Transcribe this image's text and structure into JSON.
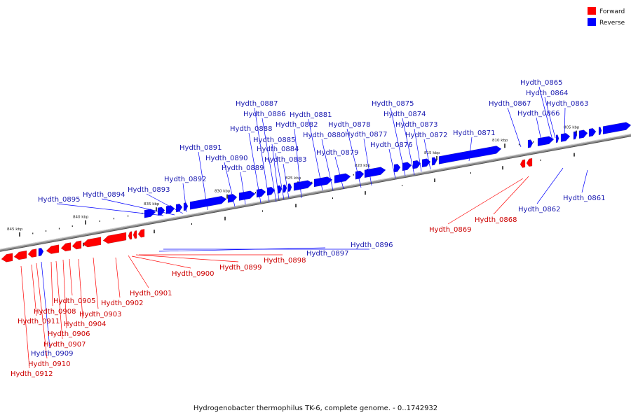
{
  "title": "Hydrogenobacter thermophilus TK-6, complete genome. - 0..1742932",
  "legend": [
    {
      "name": "Forward",
      "color": "#ff0000"
    },
    {
      "name": "Reverse",
      "color": "#0000ff"
    }
  ],
  "colors": {
    "forward": "#ff0000",
    "reverse": "#0000ff",
    "backbone": "#8c8c8c"
  },
  "chart_data": {
    "type": "genome-linear-map",
    "axis_unit": "kbp",
    "ticks": [
      {
        "kbp": 845,
        "label": "845 kbp"
      },
      {
        "kbp": 840,
        "label": "840 kbp"
      },
      {
        "kbp": 835,
        "label": "835 kbp"
      },
      {
        "kbp": 830,
        "label": "830 kbp"
      },
      {
        "kbp": 825,
        "label": "825 kbp"
      },
      {
        "kbp": 820,
        "label": "820 kbp"
      },
      {
        "kbp": 815,
        "label": "815 kbp"
      },
      {
        "kbp": 810,
        "label": "810 kbp"
      },
      {
        "kbp": 805,
        "label": "805 kbp"
      }
    ],
    "genes": [
      {
        "label": "Hydth_0861",
        "strand": "reverse"
      },
      {
        "label": "Hydth_0862",
        "strand": "reverse"
      },
      {
        "label": "Hydth_0863",
        "strand": "reverse"
      },
      {
        "label": "Hydth_0864",
        "strand": "reverse"
      },
      {
        "label": "Hydth_0865",
        "strand": "reverse"
      },
      {
        "label": "Hydth_0866",
        "strand": "reverse"
      },
      {
        "label": "Hydth_0867",
        "strand": "reverse"
      },
      {
        "label": "Hydth_0868",
        "strand": "forward"
      },
      {
        "label": "Hydth_0869",
        "strand": "forward"
      },
      {
        "label": "Hydth_0871",
        "strand": "reverse"
      },
      {
        "label": "Hydth_0872",
        "strand": "reverse"
      },
      {
        "label": "Hydth_0873",
        "strand": "reverse"
      },
      {
        "label": "Hydth_0874",
        "strand": "reverse"
      },
      {
        "label": "Hydth_0875",
        "strand": "reverse"
      },
      {
        "label": "Hydth_0876",
        "strand": "reverse"
      },
      {
        "label": "Hydth_0877",
        "strand": "reverse"
      },
      {
        "label": "Hydth_0878",
        "strand": "reverse"
      },
      {
        "label": "Hydth_0879",
        "strand": "reverse"
      },
      {
        "label": "Hydth_0880",
        "strand": "reverse"
      },
      {
        "label": "Hydth_0881",
        "strand": "reverse"
      },
      {
        "label": "Hydth_0882",
        "strand": "reverse"
      },
      {
        "label": "Hydth_0883",
        "strand": "reverse"
      },
      {
        "label": "Hydth_0884",
        "strand": "reverse"
      },
      {
        "label": "Hydth_0885",
        "strand": "reverse"
      },
      {
        "label": "Hydth_0886",
        "strand": "reverse"
      },
      {
        "label": "Hydth_0887",
        "strand": "reverse"
      },
      {
        "label": "Hydth_0888",
        "strand": "reverse"
      },
      {
        "label": "Hydth_0889",
        "strand": "reverse"
      },
      {
        "label": "Hydth_0890",
        "strand": "reverse"
      },
      {
        "label": "Hydth_0891",
        "strand": "reverse"
      },
      {
        "label": "Hydth_0892",
        "strand": "reverse"
      },
      {
        "label": "Hydth_0893",
        "strand": "reverse"
      },
      {
        "label": "Hydth_0894",
        "strand": "reverse"
      },
      {
        "label": "Hydth_0895",
        "strand": "reverse"
      },
      {
        "label": "Hydth_0896",
        "strand": "reverse"
      },
      {
        "label": "Hydth_0897",
        "strand": "reverse"
      },
      {
        "label": "Hydth_0898",
        "strand": "forward"
      },
      {
        "label": "Hydth_0899",
        "strand": "forward"
      },
      {
        "label": "Hydth_0900",
        "strand": "forward"
      },
      {
        "label": "Hydth_0901",
        "strand": "forward"
      },
      {
        "label": "Hydth_0902",
        "strand": "forward"
      },
      {
        "label": "Hydth_0903",
        "strand": "forward"
      },
      {
        "label": "Hydth_0904",
        "strand": "forward"
      },
      {
        "label": "Hydth_0905",
        "strand": "forward"
      },
      {
        "label": "Hydth_0906",
        "strand": "forward"
      },
      {
        "label": "Hydth_0907",
        "strand": "forward"
      },
      {
        "label": "Hydth_0908",
        "strand": "forward"
      },
      {
        "label": "Hydth_0909",
        "strand": "reverse"
      },
      {
        "label": "Hydth_0910",
        "strand": "forward"
      },
      {
        "label": "Hydth_0911",
        "strand": "forward"
      },
      {
        "label": "Hydth_0912",
        "strand": "forward"
      }
    ]
  }
}
